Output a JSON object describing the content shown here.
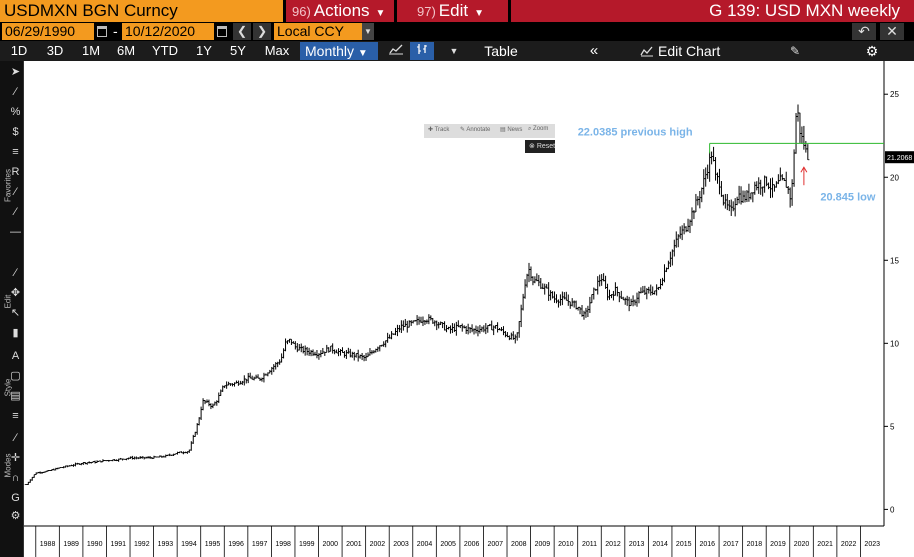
{
  "header": {
    "ticker": "USDMXN BGN Curncy",
    "actions": {
      "num": "96)",
      "label": "Actions"
    },
    "edit": {
      "num": "97)",
      "label": "Edit"
    },
    "title": "G 139: USD MXN weekly"
  },
  "datebar": {
    "start_date": "06/29/1990",
    "dash": "-",
    "end_date": "10/12/2020",
    "currency": "Local CCY"
  },
  "toolbar": {
    "ranges": [
      "1D",
      "3D",
      "1M",
      "6M",
      "YTD",
      "1Y",
      "5Y",
      "Max"
    ],
    "frequency": "Monthly",
    "table_label": "Table",
    "edit_chart_label": "Edit Chart"
  },
  "sidebar": {
    "labels": [
      "Favorites",
      "Edit",
      "Style",
      "Modes"
    ]
  },
  "float_panel": {
    "items": [
      "Track",
      "Annotate",
      "News",
      "Zoom"
    ],
    "reset": "Reset"
  },
  "chart_data": {
    "type": "bar",
    "subtype": "ohlc-price",
    "x_tick_labels": [
      "1988",
      "1989",
      "1990",
      "1991",
      "1992",
      "1993",
      "1994",
      "1995",
      "1996",
      "1997",
      "1998",
      "1999",
      "2000",
      "2001",
      "2002",
      "2003",
      "2004",
      "2005",
      "2006",
      "2007",
      "2008",
      "2009",
      "2010",
      "2011",
      "2012",
      "2013",
      "2014",
      "2015",
      "2016",
      "2017",
      "2018",
      "2019",
      "2020",
      "2021",
      "2022",
      "2023"
    ],
    "y_ticks": [
      0,
      5,
      10,
      15,
      20,
      25
    ],
    "ylim": [
      -1,
      27
    ],
    "xlim": [
      1987.5,
      2024.0
    ],
    "last_price_label": "21.2068",
    "last_price": 21.2068,
    "annotations": [
      {
        "text": "22.0385 previous high",
        "x": 2011.0,
        "y": 22.5
      },
      {
        "text": "20.845 low",
        "x": 2021.3,
        "y": 18.6
      }
    ],
    "previous_high_line": {
      "value": 22.0385,
      "x_start": 2016.6,
      "x_end": 2024.0,
      "color": "#2db82d"
    },
    "low_arrow": {
      "value": 20.845,
      "x": 2020.6,
      "color": "#e03030"
    },
    "series": [
      {
        "color": "#000000",
        "x": [
          1987.6,
          1988.0,
          1988.5,
          1989.0,
          1989.5,
          1990.0,
          1990.5,
          1991.0,
          1991.5,
          1992.0,
          1992.5,
          1993.0,
          1993.5,
          1994.0,
          1994.5,
          1994.9,
          1995.0,
          1995.1,
          1995.3,
          1995.5,
          1995.7,
          1996.0,
          1996.5,
          1997.0,
          1997.5,
          1998.0,
          1998.4,
          1998.6,
          1998.8,
          1999.0,
          1999.3,
          1999.6,
          2000.0,
          2000.5,
          2001.0,
          2001.5,
          2002.0,
          2002.5,
          2003.0,
          2003.5,
          2004.0,
          2004.5,
          2005.0,
          2005.5,
          2006.0,
          2006.5,
          2007.0,
          2007.5,
          2008.0,
          2008.4,
          2008.6,
          2008.8,
          2008.95,
          2009.1,
          2009.3,
          2009.6,
          2010.0,
          2010.5,
          2011.0,
          2011.3,
          2011.6,
          2011.8,
          2012.0,
          2012.3,
          2012.6,
          2013.0,
          2013.3,
          2013.6,
          2014.0,
          2014.4,
          2014.8,
          2015.0,
          2015.3,
          2015.6,
          2015.9,
          2016.2,
          2016.5,
          2016.7,
          2016.85,
          2017.0,
          2017.2,
          2017.5,
          2017.8,
          2018.0,
          2018.3,
          2018.5,
          2018.8,
          2019.0,
          2019.3,
          2019.6,
          2019.9,
          2020.0,
          2020.1,
          2020.2,
          2020.3,
          2020.4,
          2020.5,
          2020.6,
          2020.7,
          2020.8
        ],
        "y": [
          1.5,
          2.2,
          2.3,
          2.5,
          2.65,
          2.8,
          2.85,
          2.95,
          3.0,
          3.1,
          3.1,
          3.12,
          3.2,
          3.4,
          3.5,
          5.3,
          6.0,
          6.5,
          6.4,
          6.2,
          6.6,
          7.5,
          7.6,
          7.9,
          7.85,
          8.5,
          9.0,
          10.0,
          10.2,
          9.8,
          9.6,
          9.5,
          9.4,
          9.7,
          9.4,
          9.3,
          9.1,
          9.8,
          10.3,
          11.0,
          11.2,
          11.5,
          11.3,
          10.8,
          11.0,
          10.8,
          10.9,
          11.0,
          10.5,
          10.2,
          12.0,
          14.0,
          14.5,
          13.8,
          13.7,
          13.3,
          12.7,
          12.6,
          12.2,
          11.6,
          12.8,
          13.5,
          14.0,
          12.8,
          13.2,
          12.6,
          12.3,
          13.0,
          13.1,
          13.2,
          14.8,
          15.5,
          16.5,
          17.0,
          18.0,
          19.0,
          20.5,
          21.5,
          20.0,
          19.8,
          18.5,
          17.9,
          19.0,
          18.7,
          19.0,
          19.5,
          19.6,
          19.8,
          19.2,
          19.8,
          19.5,
          18.7,
          19.5,
          22.0,
          24.5,
          23.0,
          22.4,
          22.0,
          21.5,
          21.2
        ]
      }
    ]
  }
}
